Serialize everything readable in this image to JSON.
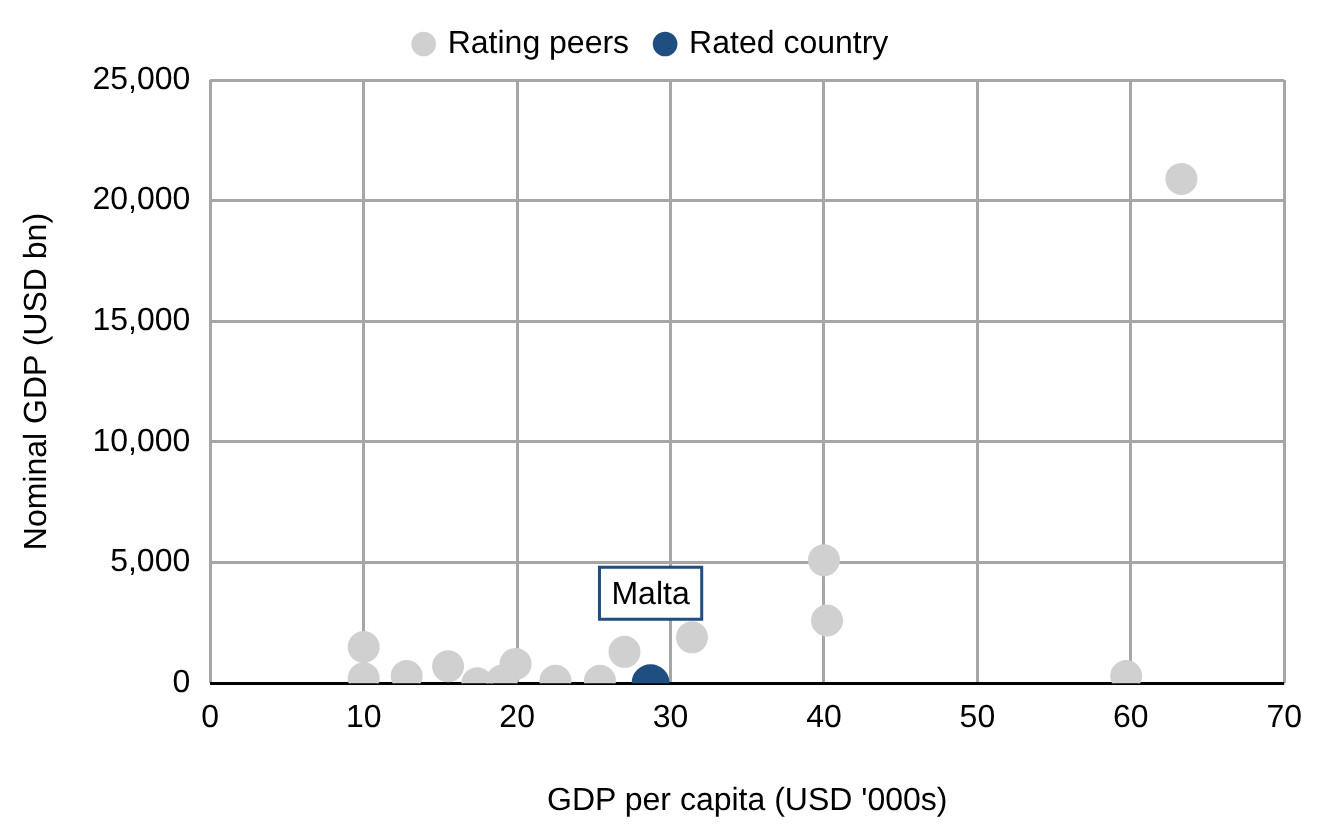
{
  "chart_data": {
    "type": "scatter",
    "xlabel": "GDP per capita (USD '000s)",
    "ylabel": "Nominal GDP (USD bn)",
    "xlim": [
      0,
      70
    ],
    "xticks": [
      0,
      10,
      20,
      30,
      40,
      50,
      60,
      70
    ],
    "ylim": [
      0,
      25000
    ],
    "yticks": [
      {
        "value": 0,
        "label": "0"
      },
      {
        "value": 5000,
        "label": "5,000"
      },
      {
        "value": 10000,
        "label": "10,000"
      },
      {
        "value": 15000,
        "label": "15,000"
      },
      {
        "value": 20000,
        "label": "20,000"
      },
      {
        "value": 25000,
        "label": "25,000"
      }
    ],
    "grid": true,
    "legend": "top",
    "marker": "circle",
    "series": [
      {
        "name": "Rating peers",
        "color": "#d0d0d0",
        "x": [
          10,
          10,
          12.8,
          15.5,
          17.4,
          19,
          19.9,
          22.5,
          25.4,
          27,
          31.4,
          40,
          40.2,
          59.7,
          63.3
        ],
        "values": [
          1500,
          200,
          300,
          700,
          0,
          100,
          800,
          100,
          100,
          1300,
          1900,
          5100,
          2600,
          300,
          20900
        ]
      },
      {
        "name": "Rated country",
        "color": "#1f4e80",
        "x": [
          28.7
        ],
        "values": [
          0
        ]
      }
    ],
    "annotations": [
      {
        "text": "Malta",
        "x": 28.7,
        "y": 0
      }
    ]
  }
}
